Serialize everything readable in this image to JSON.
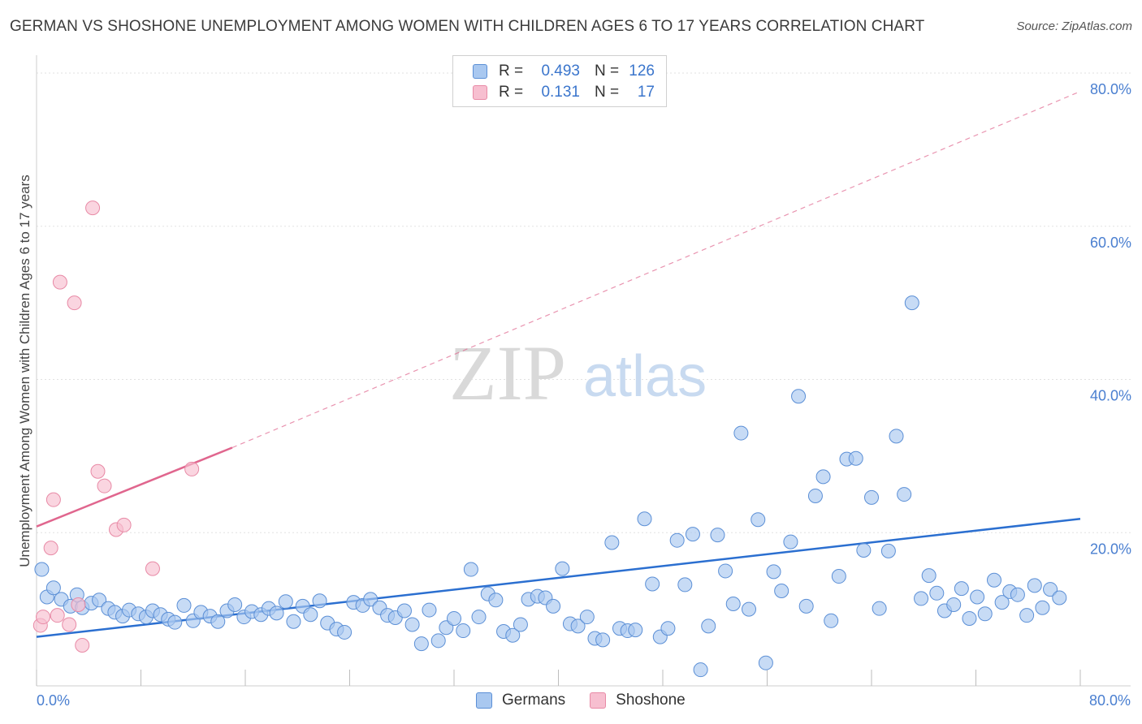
{
  "title": "GERMAN VS SHOSHONE UNEMPLOYMENT AMONG WOMEN WITH CHILDREN AGES 6 TO 17 YEARS CORRELATION CHART",
  "source": "Source: ZipAtlas.com",
  "watermark": {
    "zip": "ZIP",
    "atlas": "atlas"
  },
  "colors": {
    "german_fill": "#a9c8f0",
    "german_stroke": "#5b8fd6",
    "german_line": "#2b6fd0",
    "shoshone_fill": "#f7bfd0",
    "shoshone_stroke": "#e88aa6",
    "shoshone_line": "#e0668e",
    "tick_label": "#4a7fd0",
    "grid": "#e2e2e2"
  },
  "legend": {
    "rows": [
      {
        "r_label": "R =",
        "r_value": "0.493",
        "n_label": "N =",
        "n_value": "126",
        "series": "german"
      },
      {
        "r_label": "R =",
        "r_value": "0.131",
        "n_label": "N =",
        "n_value": "17",
        "series": "shoshone"
      }
    ]
  },
  "bottom_legend": [
    {
      "label": "Germans",
      "series": "german"
    },
    {
      "label": "Shoshone",
      "series": "shoshone"
    }
  ],
  "chart_data": {
    "type": "scatter",
    "title": "GERMAN VS SHOSHONE UNEMPLOYMENT AMONG WOMEN WITH CHILDREN AGES 6 TO 17 YEARS CORRELATION CHART",
    "xlabel": "",
    "ylabel": "Unemployment Among Women with Children Ages 6 to 17 years",
    "xlim": [
      0,
      80
    ],
    "ylim": [
      0,
      80
    ],
    "x_tick_labels": [
      "0.0%",
      "80.0%"
    ],
    "y_tick_labels": [
      {
        "value": 20,
        "label": "20.0%"
      },
      {
        "value": 40,
        "label": "40.0%"
      },
      {
        "value": 60,
        "label": "60.0%"
      },
      {
        "value": 80,
        "label": "80.0%"
      }
    ],
    "grid": true,
    "legend_position": "top-center",
    "series": [
      {
        "name": "Germans",
        "key": "german",
        "r": 0.493,
        "n": 126,
        "trend": {
          "x": [
            0,
            80
          ],
          "y": [
            6.4,
            21.8
          ],
          "style": "solid"
        },
        "points": [
          [
            0.4,
            15.2
          ],
          [
            0.8,
            11.6
          ],
          [
            1.3,
            12.8
          ],
          [
            1.9,
            11.3
          ],
          [
            2.6,
            10.4
          ],
          [
            3.1,
            11.9
          ],
          [
            3.5,
            10.2
          ],
          [
            4.2,
            10.8
          ],
          [
            4.8,
            11.2
          ],
          [
            5.5,
            10.1
          ],
          [
            6.0,
            9.6
          ],
          [
            6.6,
            9.1
          ],
          [
            7.1,
            9.9
          ],
          [
            7.8,
            9.4
          ],
          [
            8.4,
            9.0
          ],
          [
            8.9,
            9.8
          ],
          [
            9.5,
            9.3
          ],
          [
            10.1,
            8.7
          ],
          [
            10.6,
            8.3
          ],
          [
            11.3,
            10.5
          ],
          [
            12.0,
            8.5
          ],
          [
            12.6,
            9.6
          ],
          [
            13.3,
            9.1
          ],
          [
            13.9,
            8.4
          ],
          [
            14.6,
            9.8
          ],
          [
            15.2,
            10.6
          ],
          [
            15.9,
            9.0
          ],
          [
            16.5,
            9.7
          ],
          [
            17.2,
            9.3
          ],
          [
            17.8,
            10.1
          ],
          [
            18.4,
            9.5
          ],
          [
            19.1,
            11.0
          ],
          [
            19.7,
            8.4
          ],
          [
            20.4,
            10.4
          ],
          [
            21.0,
            9.3
          ],
          [
            21.7,
            11.1
          ],
          [
            22.3,
            8.2
          ],
          [
            23.0,
            7.4
          ],
          [
            23.6,
            7.0
          ],
          [
            24.3,
            10.9
          ],
          [
            25.0,
            10.5
          ],
          [
            25.6,
            11.3
          ],
          [
            26.3,
            10.2
          ],
          [
            26.9,
            9.2
          ],
          [
            27.5,
            8.9
          ],
          [
            28.2,
            9.8
          ],
          [
            28.8,
            8.0
          ],
          [
            29.5,
            5.5
          ],
          [
            30.1,
            9.9
          ],
          [
            30.8,
            5.9
          ],
          [
            31.4,
            7.6
          ],
          [
            32.0,
            8.8
          ],
          [
            32.7,
            7.2
          ],
          [
            33.3,
            15.2
          ],
          [
            33.9,
            9.0
          ],
          [
            34.6,
            12.0
          ],
          [
            35.2,
            11.2
          ],
          [
            35.8,
            7.1
          ],
          [
            36.5,
            6.6
          ],
          [
            37.1,
            8.0
          ],
          [
            37.7,
            11.3
          ],
          [
            38.4,
            11.7
          ],
          [
            39.0,
            11.5
          ],
          [
            39.6,
            10.4
          ],
          [
            40.3,
            15.3
          ],
          [
            40.9,
            8.1
          ],
          [
            41.5,
            7.8
          ],
          [
            42.2,
            9.0
          ],
          [
            42.8,
            6.2
          ],
          [
            43.4,
            6.0
          ],
          [
            44.1,
            18.7
          ],
          [
            44.7,
            7.5
          ],
          [
            45.3,
            7.2
          ],
          [
            45.9,
            7.3
          ],
          [
            46.6,
            21.8
          ],
          [
            47.2,
            13.3
          ],
          [
            47.8,
            6.4
          ],
          [
            48.4,
            7.5
          ],
          [
            49.1,
            19.0
          ],
          [
            49.7,
            13.2
          ],
          [
            50.3,
            19.8
          ],
          [
            50.9,
            2.1
          ],
          [
            51.5,
            7.8
          ],
          [
            52.2,
            19.7
          ],
          [
            52.8,
            15.0
          ],
          [
            53.4,
            10.7
          ],
          [
            54.0,
            33.0
          ],
          [
            54.6,
            10.0
          ],
          [
            55.3,
            21.7
          ],
          [
            55.9,
            3.0
          ],
          [
            56.5,
            14.9
          ],
          [
            57.1,
            12.4
          ],
          [
            57.8,
            18.8
          ],
          [
            58.4,
            37.8
          ],
          [
            59.0,
            10.4
          ],
          [
            59.7,
            24.8
          ],
          [
            60.3,
            27.3
          ],
          [
            60.9,
            8.5
          ],
          [
            61.5,
            14.3
          ],
          [
            62.1,
            29.6
          ],
          [
            62.8,
            29.7
          ],
          [
            63.4,
            17.7
          ],
          [
            64.0,
            24.6
          ],
          [
            64.6,
            10.1
          ],
          [
            65.3,
            17.6
          ],
          [
            65.9,
            32.6
          ],
          [
            66.5,
            25.0
          ],
          [
            67.1,
            50.0
          ],
          [
            67.8,
            11.4
          ],
          [
            68.4,
            14.4
          ],
          [
            69.0,
            12.1
          ],
          [
            69.6,
            9.8
          ],
          [
            70.3,
            10.6
          ],
          [
            70.9,
            12.7
          ],
          [
            71.5,
            8.8
          ],
          [
            72.1,
            11.6
          ],
          [
            72.7,
            9.4
          ],
          [
            73.4,
            13.8
          ],
          [
            74.0,
            10.9
          ],
          [
            74.6,
            12.3
          ],
          [
            75.2,
            11.9
          ],
          [
            75.9,
            9.2
          ],
          [
            76.5,
            13.1
          ],
          [
            77.1,
            10.2
          ],
          [
            77.7,
            12.6
          ],
          [
            78.4,
            11.5
          ]
        ]
      },
      {
        "name": "Shoshone",
        "key": "shoshone",
        "r": 0.131,
        "n": 17,
        "trend": {
          "x": [
            0,
            15
          ],
          "y": [
            20.8,
            31.1
          ],
          "style": "solid",
          "extended_x": [
            15,
            80
          ],
          "extended_y": [
            31.1,
            77.6
          ],
          "extended_style": "dashed"
        },
        "points": [
          [
            0.3,
            7.9
          ],
          [
            0.5,
            9.0
          ],
          [
            1.1,
            18.0
          ],
          [
            1.3,
            24.3
          ],
          [
            1.6,
            9.2
          ],
          [
            1.8,
            52.7
          ],
          [
            2.5,
            8.0
          ],
          [
            2.9,
            50.0
          ],
          [
            3.2,
            10.6
          ],
          [
            3.5,
            5.3
          ],
          [
            4.3,
            62.4
          ],
          [
            4.7,
            28.0
          ],
          [
            5.2,
            26.1
          ],
          [
            6.1,
            20.4
          ],
          [
            6.7,
            21.0
          ],
          [
            8.9,
            15.3
          ],
          [
            11.9,
            28.3
          ]
        ]
      }
    ]
  }
}
